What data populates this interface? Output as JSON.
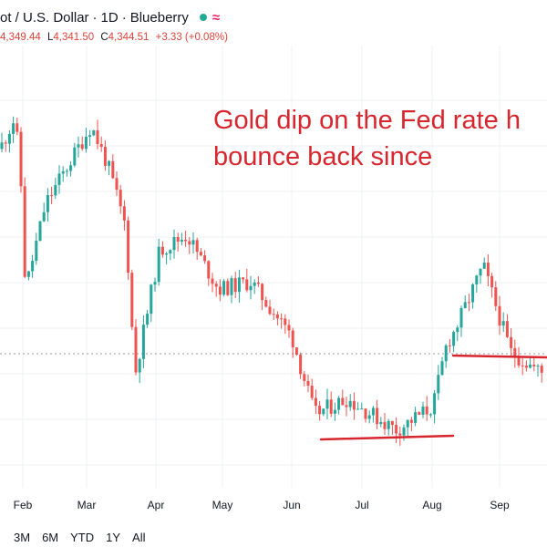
{
  "header": {
    "title": "ot / U.S. Dollar",
    "interval": "1D",
    "source": "Blueberry",
    "sep": "·",
    "status_color": "#22ab94",
    "wave_glyph": "≈",
    "wave_color": "#e91e63"
  },
  "ohlc": {
    "o_value": "4,349.44",
    "l_label": "L",
    "l_value": "4,341.50",
    "c_label": "C",
    "c_value": "4,344.51",
    "change": "+3.33 (+0.08%)"
  },
  "annotation": {
    "line1": "Gold dip on the Fed rate h",
    "line2": "bounce back since",
    "color": "#d8262f"
  },
  "range_buttons": {
    "b3m": "3M",
    "b6m": "6M",
    "bytd": "YTD",
    "b1y": "1Y",
    "ball": "All"
  },
  "colors": {
    "up": "#26a69a",
    "down": "#ef5350",
    "drawing": "#d8262f",
    "grid": "#eef0f3"
  },
  "chart_data": {
    "type": "candlestick",
    "symbol": "Gold Spot / U.S. Dollar",
    "interval": "1D",
    "x_labels": [
      "Feb",
      "Mar",
      "Apr",
      "May",
      "Jun",
      "Jul",
      "Aug",
      "Sep"
    ],
    "y_range_estimate": [
      3050,
      3500
    ],
    "grid": true,
    "close_path": [
      {
        "m": "Jan",
        "c": 3420
      },
      {
        "m": "Jan",
        "c": 3460
      },
      {
        "m": "Feb",
        "c": 3400
      },
      {
        "m": "Feb",
        "c": 3240
      },
      {
        "m": "Feb",
        "c": 3350
      },
      {
        "m": "Mar",
        "c": 3450
      },
      {
        "m": "Mar",
        "c": 3400
      },
      {
        "m": "Mar",
        "c": 3320
      },
      {
        "m": "Mar",
        "c": 3130
      },
      {
        "m": "Apr",
        "c": 3290
      },
      {
        "m": "Apr",
        "c": 3310
      },
      {
        "m": "May",
        "c": 3240
      },
      {
        "m": "May",
        "c": 3250
      },
      {
        "m": "Jun",
        "c": 3180
      },
      {
        "m": "Jun",
        "c": 3080
      },
      {
        "m": "Jul",
        "c": 3100
      },
      {
        "m": "Jul",
        "c": 3060
      },
      {
        "m": "Jul",
        "c": 3090
      },
      {
        "m": "Aug",
        "c": 3170
      },
      {
        "m": "Aug",
        "c": 3190
      },
      {
        "m": "Aug",
        "c": 3270
      },
      {
        "m": "Sep",
        "c": 3160
      },
      {
        "m": "Sep",
        "c": 3130
      }
    ],
    "support_lines": [
      {
        "level": 3062,
        "from": "Jun",
        "to": "Aug"
      },
      {
        "level": 3150,
        "from": "Aug",
        "to": "Sep"
      }
    ]
  }
}
